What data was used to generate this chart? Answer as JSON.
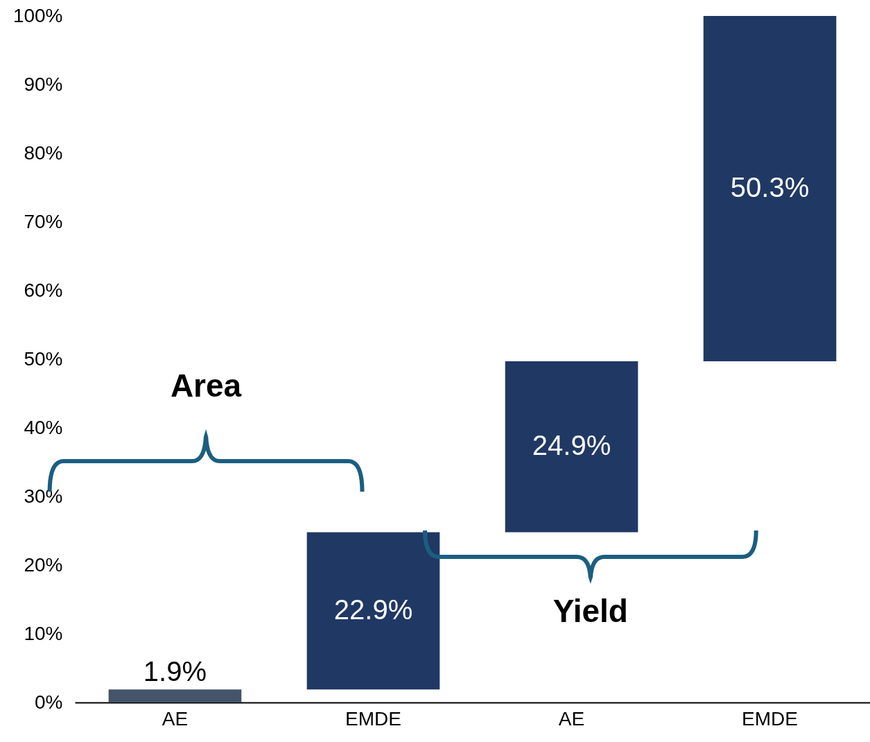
{
  "chart_data": {
    "type": "bar",
    "categories": [
      "AE",
      "EMDE",
      "AE",
      "EMDE"
    ],
    "values": [
      1.9,
      22.9,
      24.9,
      50.3
    ],
    "base": [
      0,
      1.9,
      24.8,
      49.7
    ],
    "colors": [
      "#44546a",
      "#203864",
      "#203864",
      "#203864"
    ],
    "value_labels": [
      "1.9%",
      "22.9%",
      "24.9%",
      "50.3%"
    ],
    "ylim": [
      0,
      100
    ],
    "yticks": [
      {
        "value": 0,
        "label": "0%"
      },
      {
        "value": 10,
        "label": "10%"
      },
      {
        "value": 20,
        "label": "20%"
      },
      {
        "value": 30,
        "label": "30%"
      },
      {
        "value": 40,
        "label": "40%"
      },
      {
        "value": 50,
        "label": "50%"
      },
      {
        "value": 60,
        "label": "60%"
      },
      {
        "value": 70,
        "label": "70%"
      },
      {
        "value": 80,
        "label": "80%"
      },
      {
        "value": 90,
        "label": "90%"
      },
      {
        "value": 100,
        "label": "100%"
      }
    ],
    "annotations": [
      "Area",
      "Yield"
    ],
    "grid": false
  }
}
